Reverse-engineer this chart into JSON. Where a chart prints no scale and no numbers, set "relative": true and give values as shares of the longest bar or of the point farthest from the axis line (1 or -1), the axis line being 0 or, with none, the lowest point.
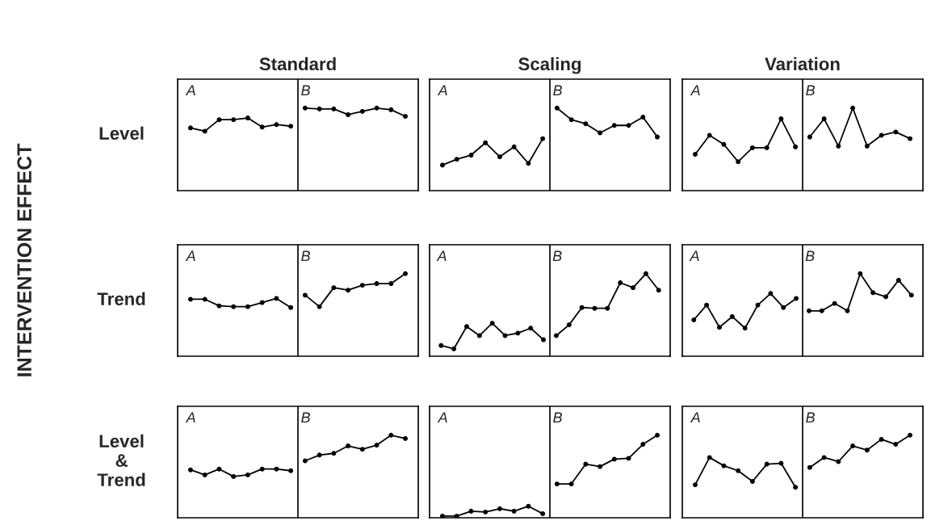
{
  "chart_data": [
    {
      "type": "line",
      "title": "Standard",
      "ylabel": "Level",
      "annotations": [
        "A",
        "B"
      ],
      "relative": true,
      "marker": "circle",
      "categories": [
        null,
        null,
        null,
        null,
        null,
        null,
        null,
        null,
        null,
        null,
        null,
        null,
        null,
        null,
        null,
        null
      ],
      "series": [
        {
          "color": "#000000",
          "values": [
            0.76,
            0.72,
            0.86,
            0.86,
            0.88,
            0.77,
            0.8,
            0.78,
            null,
            null,
            null,
            null,
            null,
            null,
            null,
            null
          ]
        },
        {
          "color": "#000000",
          "values": [
            null,
            null,
            null,
            null,
            null,
            null,
            null,
            null,
            1.0,
            0.99,
            0.99,
            0.92,
            0.96,
            1.0,
            0.98,
            0.9
          ]
        }
      ]
    },
    {
      "type": "line",
      "title": "Scaling",
      "annotations": [
        "A",
        "B"
      ],
      "relative": true,
      "marker": "circle",
      "categories": [
        null,
        null,
        null,
        null,
        null,
        null,
        null,
        null,
        null,
        null,
        null,
        null,
        null,
        null,
        null,
        null
      ],
      "series": [
        {
          "color": "#000000",
          "values": [
            0.31,
            0.38,
            0.43,
            0.58,
            0.41,
            0.53,
            0.33,
            0.63,
            null,
            null,
            null,
            null,
            null,
            null,
            null,
            null
          ]
        },
        {
          "color": "#000000",
          "values": [
            null,
            null,
            null,
            null,
            null,
            null,
            null,
            null,
            1.0,
            0.86,
            0.81,
            0.7,
            0.79,
            0.79,
            0.89,
            0.65
          ]
        }
      ]
    },
    {
      "type": "line",
      "title": "Variation",
      "annotations": [
        "A",
        "B"
      ],
      "relative": true,
      "marker": "circle",
      "categories": [
        null,
        null,
        null,
        null,
        null,
        null,
        null,
        null,
        null,
        null,
        null,
        null,
        null,
        null,
        null,
        null
      ],
      "series": [
        {
          "color": "#000000",
          "values": [
            0.44,
            0.67,
            0.56,
            0.35,
            0.52,
            0.52,
            0.87,
            0.53,
            null,
            null,
            null,
            null,
            null,
            null,
            null,
            null
          ]
        },
        {
          "color": "#000000",
          "values": [
            null,
            null,
            null,
            null,
            null,
            null,
            null,
            null,
            0.65,
            0.87,
            0.54,
            1.0,
            0.54,
            0.67,
            0.71,
            0.63
          ]
        }
      ]
    },
    {
      "type": "line",
      "ylabel": "Trend",
      "annotations": [
        "A",
        "B",
        "INTERVENTION EFFECT"
      ],
      "relative": true,
      "marker": "circle",
      "categories": [
        null,
        null,
        null,
        null,
        null,
        null,
        null,
        null,
        null,
        null,
        null,
        null,
        null,
        null,
        null,
        null
      ],
      "series": [
        {
          "color": "#000000",
          "values": [
            0.69,
            0.69,
            0.61,
            0.6,
            0.6,
            0.65,
            0.7,
            0.59,
            null,
            null,
            null,
            null,
            null,
            null,
            null,
            null
          ]
        },
        {
          "color": "#000000",
          "values": [
            null,
            null,
            null,
            null,
            null,
            null,
            null,
            null,
            0.74,
            0.6,
            0.83,
            0.8,
            0.86,
            0.88,
            0.88,
            1.0
          ]
        }
      ]
    },
    {
      "type": "line",
      "annotations": [
        "A",
        "B"
      ],
      "relative": true,
      "marker": "circle",
      "categories": [
        null,
        null,
        null,
        null,
        null,
        null,
        null,
        null,
        null,
        null,
        null,
        null,
        null,
        null,
        null,
        null,
        null,
        null
      ],
      "series": [
        {
          "color": "#000000",
          "values": [
            0.13,
            0.09,
            0.36,
            0.25,
            0.4,
            0.25,
            0.28,
            0.34,
            0.2,
            null,
            null,
            null,
            null,
            null,
            null,
            null,
            null,
            null
          ]
        },
        {
          "color": "#000000",
          "values": [
            null,
            null,
            null,
            null,
            null,
            null,
            null,
            null,
            null,
            0.25,
            0.38,
            0.59,
            0.58,
            0.58,
            0.89,
            0.83,
            1.0,
            0.8
          ]
        }
      ]
    },
    {
      "type": "line",
      "annotations": [
        "A",
        "B"
      ],
      "relative": true,
      "marker": "circle",
      "categories": [
        null,
        null,
        null,
        null,
        null,
        null,
        null,
        null,
        null,
        null,
        null,
        null,
        null,
        null,
        null,
        null,
        null,
        null
      ],
      "series": [
        {
          "color": "#000000",
          "values": [
            0.44,
            0.62,
            0.35,
            0.48,
            0.34,
            0.62,
            0.76,
            0.59,
            0.7,
            null,
            null,
            null,
            null,
            null,
            null,
            null,
            null,
            null
          ]
        },
        {
          "color": "#000000",
          "values": [
            null,
            null,
            null,
            null,
            null,
            null,
            null,
            null,
            null,
            0.55,
            0.55,
            0.64,
            0.55,
            1.0,
            0.77,
            0.72,
            0.92,
            0.74
          ]
        }
      ]
    },
    {
      "type": "line",
      "ylabel": "Level\n&\nTrend",
      "annotations": [
        "A",
        "B"
      ],
      "relative": true,
      "marker": "circle",
      "categories": [
        null,
        null,
        null,
        null,
        null,
        null,
        null,
        null,
        null,
        null,
        null,
        null,
        null,
        null,
        null,
        null
      ],
      "series": [
        {
          "color": "#000000",
          "values": [
            0.58,
            0.52,
            0.59,
            0.5,
            0.52,
            0.59,
            0.59,
            0.57,
            null,
            null,
            null,
            null,
            null,
            null,
            null,
            null
          ]
        },
        {
          "color": "#000000",
          "values": [
            null,
            null,
            null,
            null,
            null,
            null,
            null,
            null,
            0.69,
            0.76,
            0.78,
            0.87,
            0.83,
            0.88,
            1.0,
            0.96
          ]
        }
      ]
    },
    {
      "type": "line",
      "annotations": [
        "A",
        "B"
      ],
      "relative": true,
      "marker": "circle",
      "categories": [
        null,
        null,
        null,
        null,
        null,
        null,
        null,
        null,
        null,
        null,
        null,
        null,
        null,
        null,
        null,
        null
      ],
      "series": [
        {
          "color": "#000000",
          "values": [
            0.02,
            0.02,
            0.08,
            0.07,
            0.11,
            0.08,
            0.14,
            0.05,
            null,
            null,
            null,
            null,
            null,
            null,
            null,
            null
          ]
        },
        {
          "color": "#000000",
          "values": [
            null,
            null,
            null,
            null,
            null,
            null,
            null,
            null,
            0.41,
            0.41,
            0.65,
            0.62,
            0.71,
            0.72,
            0.89,
            1.0
          ]
        }
      ]
    },
    {
      "type": "line",
      "annotations": [
        "A",
        "B"
      ],
      "relative": true,
      "marker": "circle",
      "categories": [
        null,
        null,
        null,
        null,
        null,
        null,
        null,
        null,
        null,
        null,
        null,
        null,
        null,
        null,
        null,
        null
      ],
      "series": [
        {
          "color": "#000000",
          "values": [
            0.4,
            0.73,
            0.63,
            0.57,
            0.44,
            0.65,
            0.66,
            0.37,
            null,
            null,
            null,
            null,
            null,
            null,
            null,
            null
          ]
        },
        {
          "color": "#000000",
          "values": [
            null,
            null,
            null,
            null,
            null,
            null,
            null,
            null,
            0.61,
            0.73,
            0.68,
            0.87,
            0.82,
            0.95,
            0.89,
            1.0
          ]
        }
      ]
    }
  ]
}
